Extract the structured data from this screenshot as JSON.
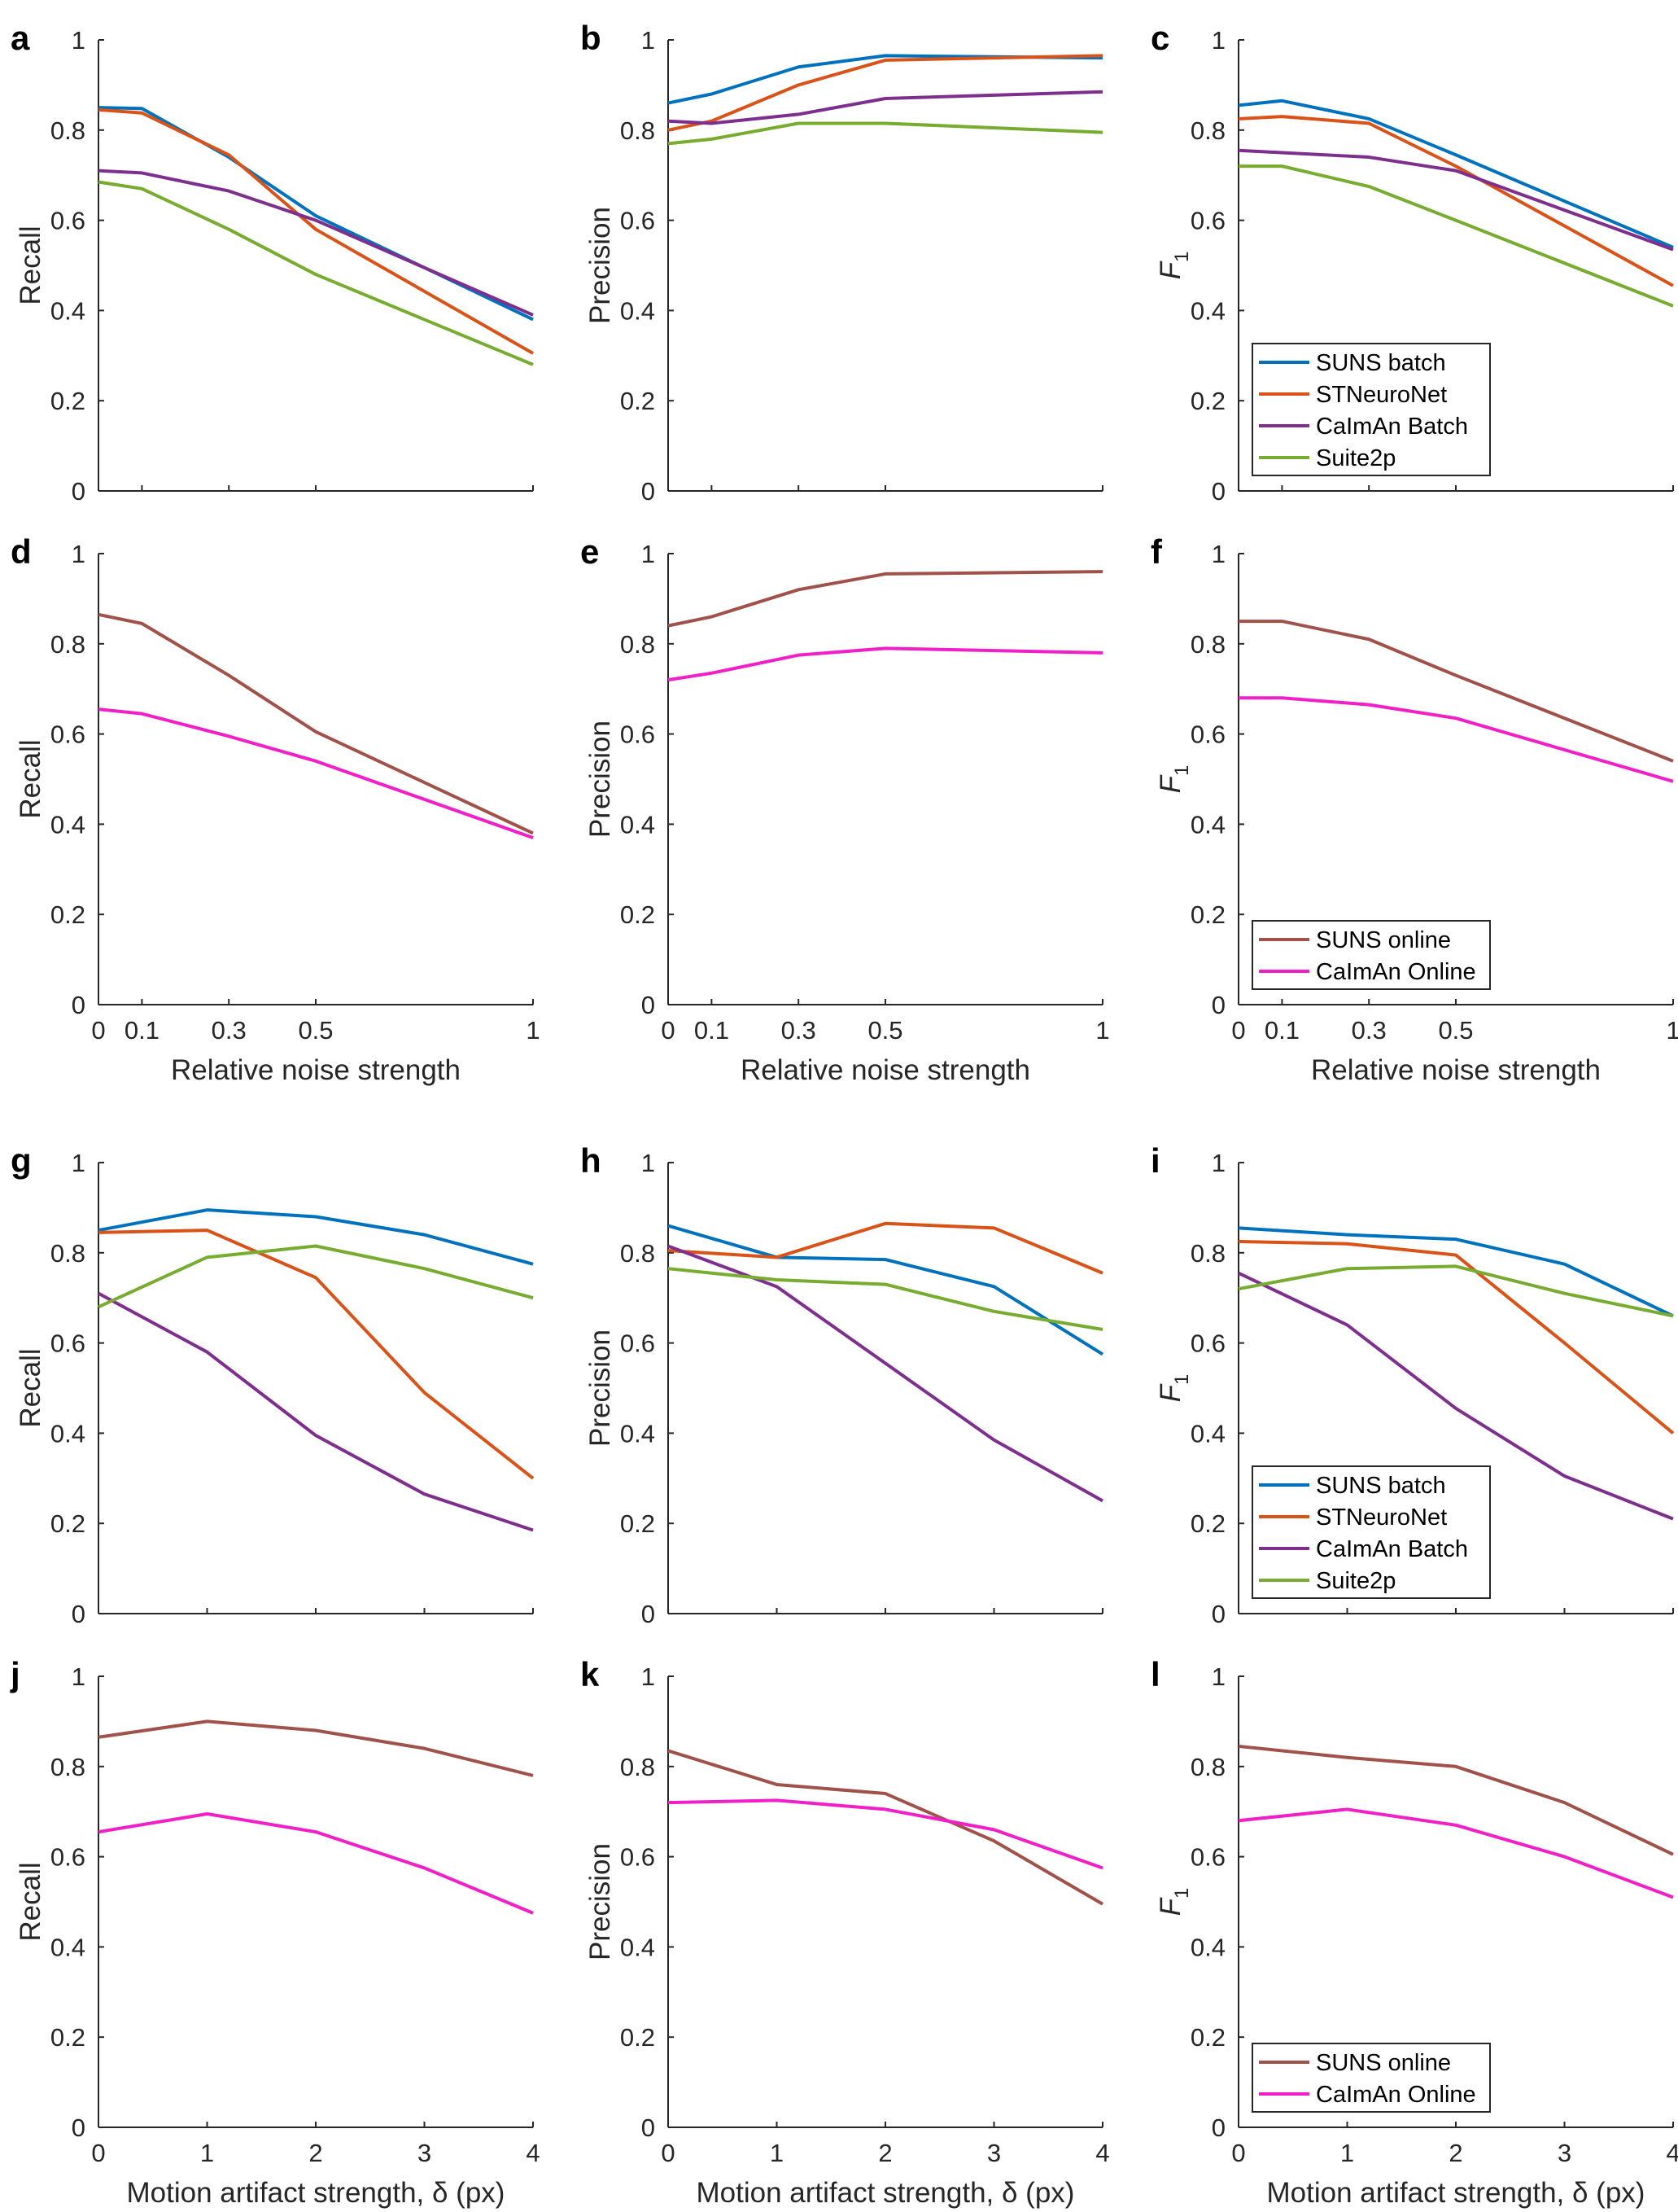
{
  "colors": {
    "SUNS batch": "#0072BD",
    "STNeuroNet": "#D95319",
    "CaImAn Batch": "#7E2F8E",
    "Suite2p": "#77AC30",
    "SUNS online": "#A0524A",
    "CaImAn Online": "#F01FC8"
  },
  "chart_data": [
    {
      "panel": "a",
      "type": "line",
      "ylabel": "Recall",
      "xlabel": "",
      "x": [
        0,
        0.1,
        0.3,
        0.5,
        1
      ],
      "xticks": [
        0,
        0.1,
        0.3,
        0.5,
        1
      ],
      "show_xticklabels": false,
      "yticks": [
        0,
        0.2,
        0.4,
        0.6,
        0.8,
        1
      ],
      "xlim": [
        0,
        1
      ],
      "ylim": [
        0,
        1
      ],
      "legend": null,
      "series": [
        {
          "name": "SUNS batch",
          "values": [
            0.85,
            0.848,
            0.74,
            0.61,
            0.38
          ]
        },
        {
          "name": "STNeuroNet",
          "values": [
            0.845,
            0.838,
            0.745,
            0.58,
            0.305
          ]
        },
        {
          "name": "CaImAn Batch",
          "values": [
            0.71,
            0.705,
            0.665,
            0.6,
            0.39
          ]
        },
        {
          "name": "Suite2p",
          "values": [
            0.685,
            0.67,
            0.58,
            0.48,
            0.28
          ]
        }
      ]
    },
    {
      "panel": "b",
      "type": "line",
      "ylabel": "Precision",
      "xlabel": "",
      "x": [
        0,
        0.1,
        0.3,
        0.5,
        1
      ],
      "xticks": [
        0,
        0.1,
        0.3,
        0.5,
        1
      ],
      "show_xticklabels": false,
      "yticks": [
        0,
        0.2,
        0.4,
        0.6,
        0.8,
        1
      ],
      "xlim": [
        0,
        1
      ],
      "ylim": [
        0,
        1
      ],
      "legend": null,
      "series": [
        {
          "name": "SUNS batch",
          "values": [
            0.86,
            0.88,
            0.94,
            0.965,
            0.96
          ]
        },
        {
          "name": "STNeuroNet",
          "values": [
            0.8,
            0.82,
            0.9,
            0.955,
            0.965
          ]
        },
        {
          "name": "CaImAn Batch",
          "values": [
            0.82,
            0.815,
            0.835,
            0.87,
            0.885
          ]
        },
        {
          "name": "Suite2p",
          "values": [
            0.77,
            0.78,
            0.815,
            0.815,
            0.795
          ]
        }
      ]
    },
    {
      "panel": "c",
      "type": "line",
      "ylabel": "F1",
      "xlabel": "",
      "x": [
        0,
        0.1,
        0.3,
        0.5,
        1
      ],
      "xticks": [
        0,
        0.1,
        0.3,
        0.5,
        1
      ],
      "show_xticklabels": false,
      "yticks": [
        0,
        0.2,
        0.4,
        0.6,
        0.8,
        1
      ],
      "xlim": [
        0,
        1
      ],
      "ylim": [
        0,
        1
      ],
      "legend": "bottom-left",
      "series": [
        {
          "name": "SUNS batch",
          "values": [
            0.855,
            0.865,
            0.825,
            0.745,
            0.54
          ]
        },
        {
          "name": "STNeuroNet",
          "values": [
            0.825,
            0.83,
            0.815,
            0.72,
            0.455
          ]
        },
        {
          "name": "CaImAn Batch",
          "values": [
            0.755,
            0.75,
            0.74,
            0.71,
            0.535
          ]
        },
        {
          "name": "Suite2p",
          "values": [
            0.72,
            0.72,
            0.675,
            0.6,
            0.41
          ]
        }
      ]
    },
    {
      "panel": "d",
      "type": "line",
      "ylabel": "Recall",
      "xlabel": "Relative noise strength",
      "x": [
        0,
        0.1,
        0.3,
        0.5,
        1
      ],
      "xticks": [
        0,
        0.1,
        0.3,
        0.5,
        1
      ],
      "show_xticklabels": true,
      "yticks": [
        0,
        0.2,
        0.4,
        0.6,
        0.8,
        1
      ],
      "xlim": [
        0,
        1
      ],
      "ylim": [
        0,
        1
      ],
      "legend": null,
      "series": [
        {
          "name": "SUNS online",
          "values": [
            0.865,
            0.845,
            0.73,
            0.605,
            0.38
          ]
        },
        {
          "name": "CaImAn Online",
          "values": [
            0.655,
            0.645,
            0.595,
            0.54,
            0.37
          ]
        }
      ]
    },
    {
      "panel": "e",
      "type": "line",
      "ylabel": "Precision",
      "xlabel": "Relative noise strength",
      "x": [
        0,
        0.1,
        0.3,
        0.5,
        1
      ],
      "xticks": [
        0,
        0.1,
        0.3,
        0.5,
        1
      ],
      "show_xticklabels": true,
      "yticks": [
        0,
        0.2,
        0.4,
        0.6,
        0.8,
        1
      ],
      "xlim": [
        0,
        1
      ],
      "ylim": [
        0,
        1
      ],
      "legend": null,
      "series": [
        {
          "name": "SUNS online",
          "values": [
            0.84,
            0.86,
            0.92,
            0.955,
            0.96
          ]
        },
        {
          "name": "CaImAn Online",
          "values": [
            0.72,
            0.735,
            0.775,
            0.79,
            0.78
          ]
        }
      ]
    },
    {
      "panel": "f",
      "type": "line",
      "ylabel": "F1",
      "xlabel": "Relative noise strength",
      "x": [
        0,
        0.1,
        0.3,
        0.5,
        1
      ],
      "xticks": [
        0,
        0.1,
        0.3,
        0.5,
        1
      ],
      "show_xticklabels": true,
      "yticks": [
        0,
        0.2,
        0.4,
        0.6,
        0.8,
        1
      ],
      "xlim": [
        0,
        1
      ],
      "ylim": [
        0,
        1
      ],
      "legend": "bottom-left",
      "series": [
        {
          "name": "SUNS online",
          "values": [
            0.85,
            0.85,
            0.81,
            0.73,
            0.54
          ]
        },
        {
          "name": "CaImAn Online",
          "values": [
            0.68,
            0.68,
            0.665,
            0.635,
            0.495
          ]
        }
      ]
    },
    {
      "panel": "g",
      "type": "line",
      "ylabel": "Recall",
      "xlabel": "",
      "x": [
        0,
        1,
        2,
        3,
        4
      ],
      "xticks": [
        0,
        1,
        2,
        3,
        4
      ],
      "show_xticklabels": false,
      "yticks": [
        0,
        0.2,
        0.4,
        0.6,
        0.8,
        1
      ],
      "xlim": [
        0,
        4
      ],
      "ylim": [
        0,
        1
      ],
      "legend": null,
      "series": [
        {
          "name": "SUNS batch",
          "values": [
            0.85,
            0.895,
            0.88,
            0.84,
            0.775
          ]
        },
        {
          "name": "STNeuroNet",
          "values": [
            0.845,
            0.85,
            0.745,
            0.49,
            0.3
          ]
        },
        {
          "name": "CaImAn Batch",
          "values": [
            0.71,
            0.58,
            0.395,
            0.265,
            0.185
          ]
        },
        {
          "name": "Suite2p",
          "values": [
            0.68,
            0.79,
            0.815,
            0.765,
            0.7
          ]
        }
      ]
    },
    {
      "panel": "h",
      "type": "line",
      "ylabel": "Precision",
      "xlabel": "",
      "x": [
        0,
        1,
        2,
        3,
        4
      ],
      "xticks": [
        0,
        1,
        2,
        3,
        4
      ],
      "show_xticklabels": false,
      "yticks": [
        0,
        0.2,
        0.4,
        0.6,
        0.8,
        1
      ],
      "xlim": [
        0,
        4
      ],
      "ylim": [
        0,
        1
      ],
      "legend": null,
      "series": [
        {
          "name": "SUNS batch",
          "values": [
            0.86,
            0.79,
            0.785,
            0.725,
            0.575
          ]
        },
        {
          "name": "STNeuroNet",
          "values": [
            0.805,
            0.79,
            0.865,
            0.855,
            0.755
          ]
        },
        {
          "name": "CaImAn Batch",
          "values": [
            0.815,
            0.725,
            0.555,
            0.385,
            0.25
          ]
        },
        {
          "name": "Suite2p",
          "values": [
            0.765,
            0.74,
            0.73,
            0.67,
            0.63
          ]
        }
      ]
    },
    {
      "panel": "i",
      "type": "line",
      "ylabel": "F1",
      "xlabel": "",
      "x": [
        0,
        1,
        2,
        3,
        4
      ],
      "xticks": [
        0,
        1,
        2,
        3,
        4
      ],
      "show_xticklabels": false,
      "yticks": [
        0,
        0.2,
        0.4,
        0.6,
        0.8,
        1
      ],
      "xlim": [
        0,
        4
      ],
      "ylim": [
        0,
        1
      ],
      "legend": "bottom-left",
      "series": [
        {
          "name": "SUNS batch",
          "values": [
            0.855,
            0.84,
            0.83,
            0.775,
            0.66
          ]
        },
        {
          "name": "STNeuroNet",
          "values": [
            0.825,
            0.82,
            0.795,
            0.6,
            0.4
          ]
        },
        {
          "name": "CaImAn Batch",
          "values": [
            0.755,
            0.64,
            0.455,
            0.305,
            0.21
          ]
        },
        {
          "name": "Suite2p",
          "values": [
            0.72,
            0.765,
            0.77,
            0.71,
            0.66
          ]
        }
      ]
    },
    {
      "panel": "j",
      "type": "line",
      "ylabel": "Recall",
      "xlabel": "Motion artifact strength, δ (px)",
      "x": [
        0,
        1,
        2,
        3,
        4
      ],
      "xticks": [
        0,
        1,
        2,
        3,
        4
      ],
      "show_xticklabels": true,
      "yticks": [
        0,
        0.2,
        0.4,
        0.6,
        0.8,
        1
      ],
      "xlim": [
        0,
        4
      ],
      "ylim": [
        0,
        1
      ],
      "legend": null,
      "series": [
        {
          "name": "SUNS online",
          "values": [
            0.865,
            0.9,
            0.88,
            0.84,
            0.78
          ]
        },
        {
          "name": "CaImAn Online",
          "values": [
            0.655,
            0.695,
            0.655,
            0.575,
            0.475
          ]
        }
      ]
    },
    {
      "panel": "k",
      "type": "line",
      "ylabel": "Precision",
      "xlabel": "Motion artifact strength, δ (px)",
      "x": [
        0,
        1,
        2,
        3,
        4
      ],
      "xticks": [
        0,
        1,
        2,
        3,
        4
      ],
      "show_xticklabels": true,
      "yticks": [
        0,
        0.2,
        0.4,
        0.6,
        0.8,
        1
      ],
      "xlim": [
        0,
        4
      ],
      "ylim": [
        0,
        1
      ],
      "legend": null,
      "series": [
        {
          "name": "SUNS online",
          "values": [
            0.835,
            0.76,
            0.74,
            0.635,
            0.495
          ]
        },
        {
          "name": "CaImAn Online",
          "values": [
            0.72,
            0.725,
            0.705,
            0.66,
            0.575
          ]
        }
      ]
    },
    {
      "panel": "l",
      "type": "line",
      "ylabel": "F1",
      "xlabel": "Motion artifact strength, δ (px)",
      "x": [
        0,
        1,
        2,
        3,
        4
      ],
      "xticks": [
        0,
        1,
        2,
        3,
        4
      ],
      "show_xticklabels": true,
      "yticks": [
        0,
        0.2,
        0.4,
        0.6,
        0.8,
        1
      ],
      "xlim": [
        0,
        4
      ],
      "ylim": [
        0,
        1
      ],
      "legend": "bottom-left",
      "series": [
        {
          "name": "SUNS online",
          "values": [
            0.845,
            0.82,
            0.8,
            0.72,
            0.605
          ]
        },
        {
          "name": "CaImAn Online",
          "values": [
            0.68,
            0.705,
            0.67,
            0.6,
            0.51
          ]
        }
      ]
    }
  ]
}
